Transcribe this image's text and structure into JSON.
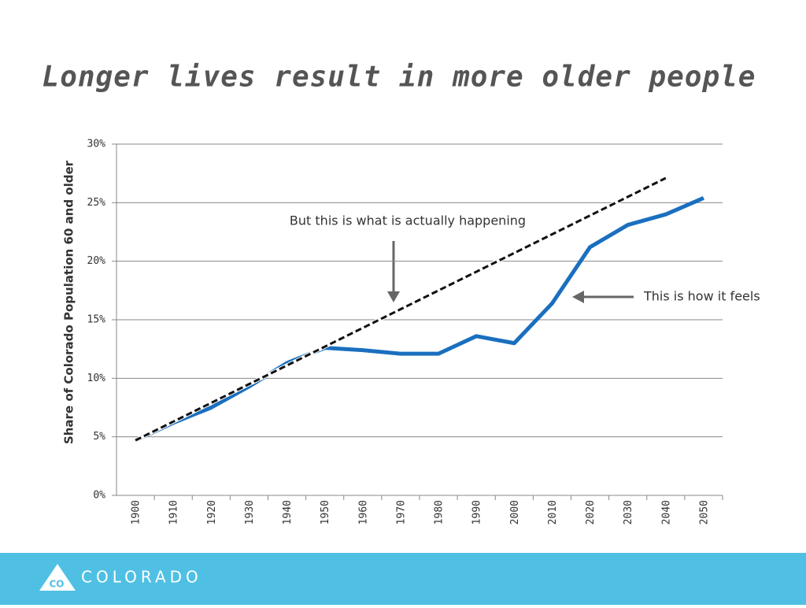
{
  "chart_data": {
    "type": "line",
    "title": "Longer lives result in more older people",
    "y_label": "Share of Colorado Population 60 and older",
    "categories": [
      "1900",
      "1910",
      "1920",
      "1930",
      "1940",
      "1950",
      "1960",
      "1970",
      "1980",
      "1990",
      "2000",
      "2010",
      "2020",
      "2030",
      "2040",
      "2050"
    ],
    "series": [
      {
        "color": "#1a6fbf",
        "style": "solid",
        "values": [
          4.7,
          6.2,
          7.5,
          9.3,
          11.3,
          12.6,
          12.4,
          12.1,
          12.1,
          13.6,
          13.0,
          16.4,
          21.2,
          23.1,
          24.0,
          25.4
        ]
      },
      {
        "color": "#111111",
        "style": "dashed",
        "values": [
          4.7,
          6.3,
          7.9,
          9.5,
          11.1,
          12.7,
          14.3,
          15.9,
          17.5,
          19.1,
          20.7,
          22.3,
          23.9,
          25.5,
          27.1,
          null
        ]
      }
    ],
    "ylim": [
      0,
      30
    ],
    "yticks": [
      {
        "value": 0,
        "label": "0%"
      },
      {
        "value": 5,
        "label": "5%"
      },
      {
        "value": 10,
        "label": "10%"
      },
      {
        "value": 15,
        "label": "15%"
      },
      {
        "value": 20,
        "label": "20%"
      },
      {
        "value": 25,
        "label": "25%"
      },
      {
        "value": 30,
        "label": "30%"
      }
    ],
    "grid": true,
    "annotations": [
      "But this is what is actually happening",
      "This is how it feels"
    ]
  },
  "footer": {
    "badge": "CO",
    "logo_text": "COLORADO"
  }
}
